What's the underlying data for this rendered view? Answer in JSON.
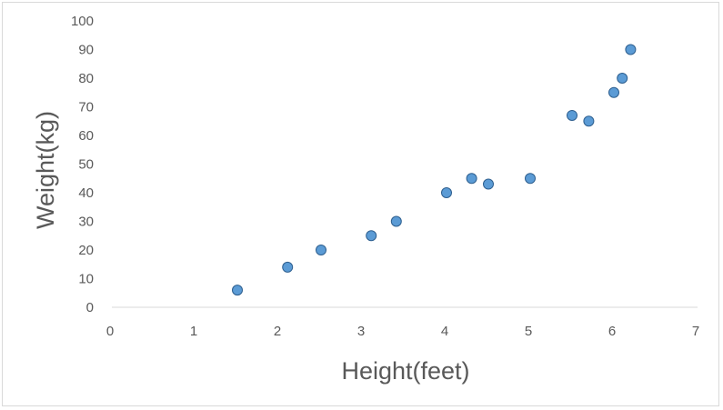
{
  "chart_data": {
    "type": "scatter",
    "title": "",
    "xlabel": "Height(feet)",
    "ylabel": "Weight(kg)",
    "xlim": [
      0,
      7
    ],
    "ylim": [
      0,
      100
    ],
    "x_ticks": [
      0,
      1,
      2,
      3,
      4,
      5,
      6,
      7
    ],
    "y_ticks": [
      0,
      10,
      20,
      30,
      40,
      50,
      60,
      70,
      80,
      90,
      100
    ],
    "grid": false,
    "legend": "none",
    "marker_color": "#5b9bd5",
    "marker_edge_color": "#2e5f8f",
    "series": [
      {
        "points": [
          {
            "x": 1.5,
            "y": 6
          },
          {
            "x": 2.1,
            "y": 14
          },
          {
            "x": 2.5,
            "y": 20
          },
          {
            "x": 3.1,
            "y": 25
          },
          {
            "x": 3.4,
            "y": 30
          },
          {
            "x": 4.0,
            "y": 40
          },
          {
            "x": 4.3,
            "y": 45
          },
          {
            "x": 4.5,
            "y": 43
          },
          {
            "x": 5.0,
            "y": 45
          },
          {
            "x": 5.5,
            "y": 67
          },
          {
            "x": 5.7,
            "y": 65
          },
          {
            "x": 6.0,
            "y": 75
          },
          {
            "x": 6.1,
            "y": 80
          },
          {
            "x": 6.2,
            "y": 90
          }
        ]
      }
    ]
  }
}
